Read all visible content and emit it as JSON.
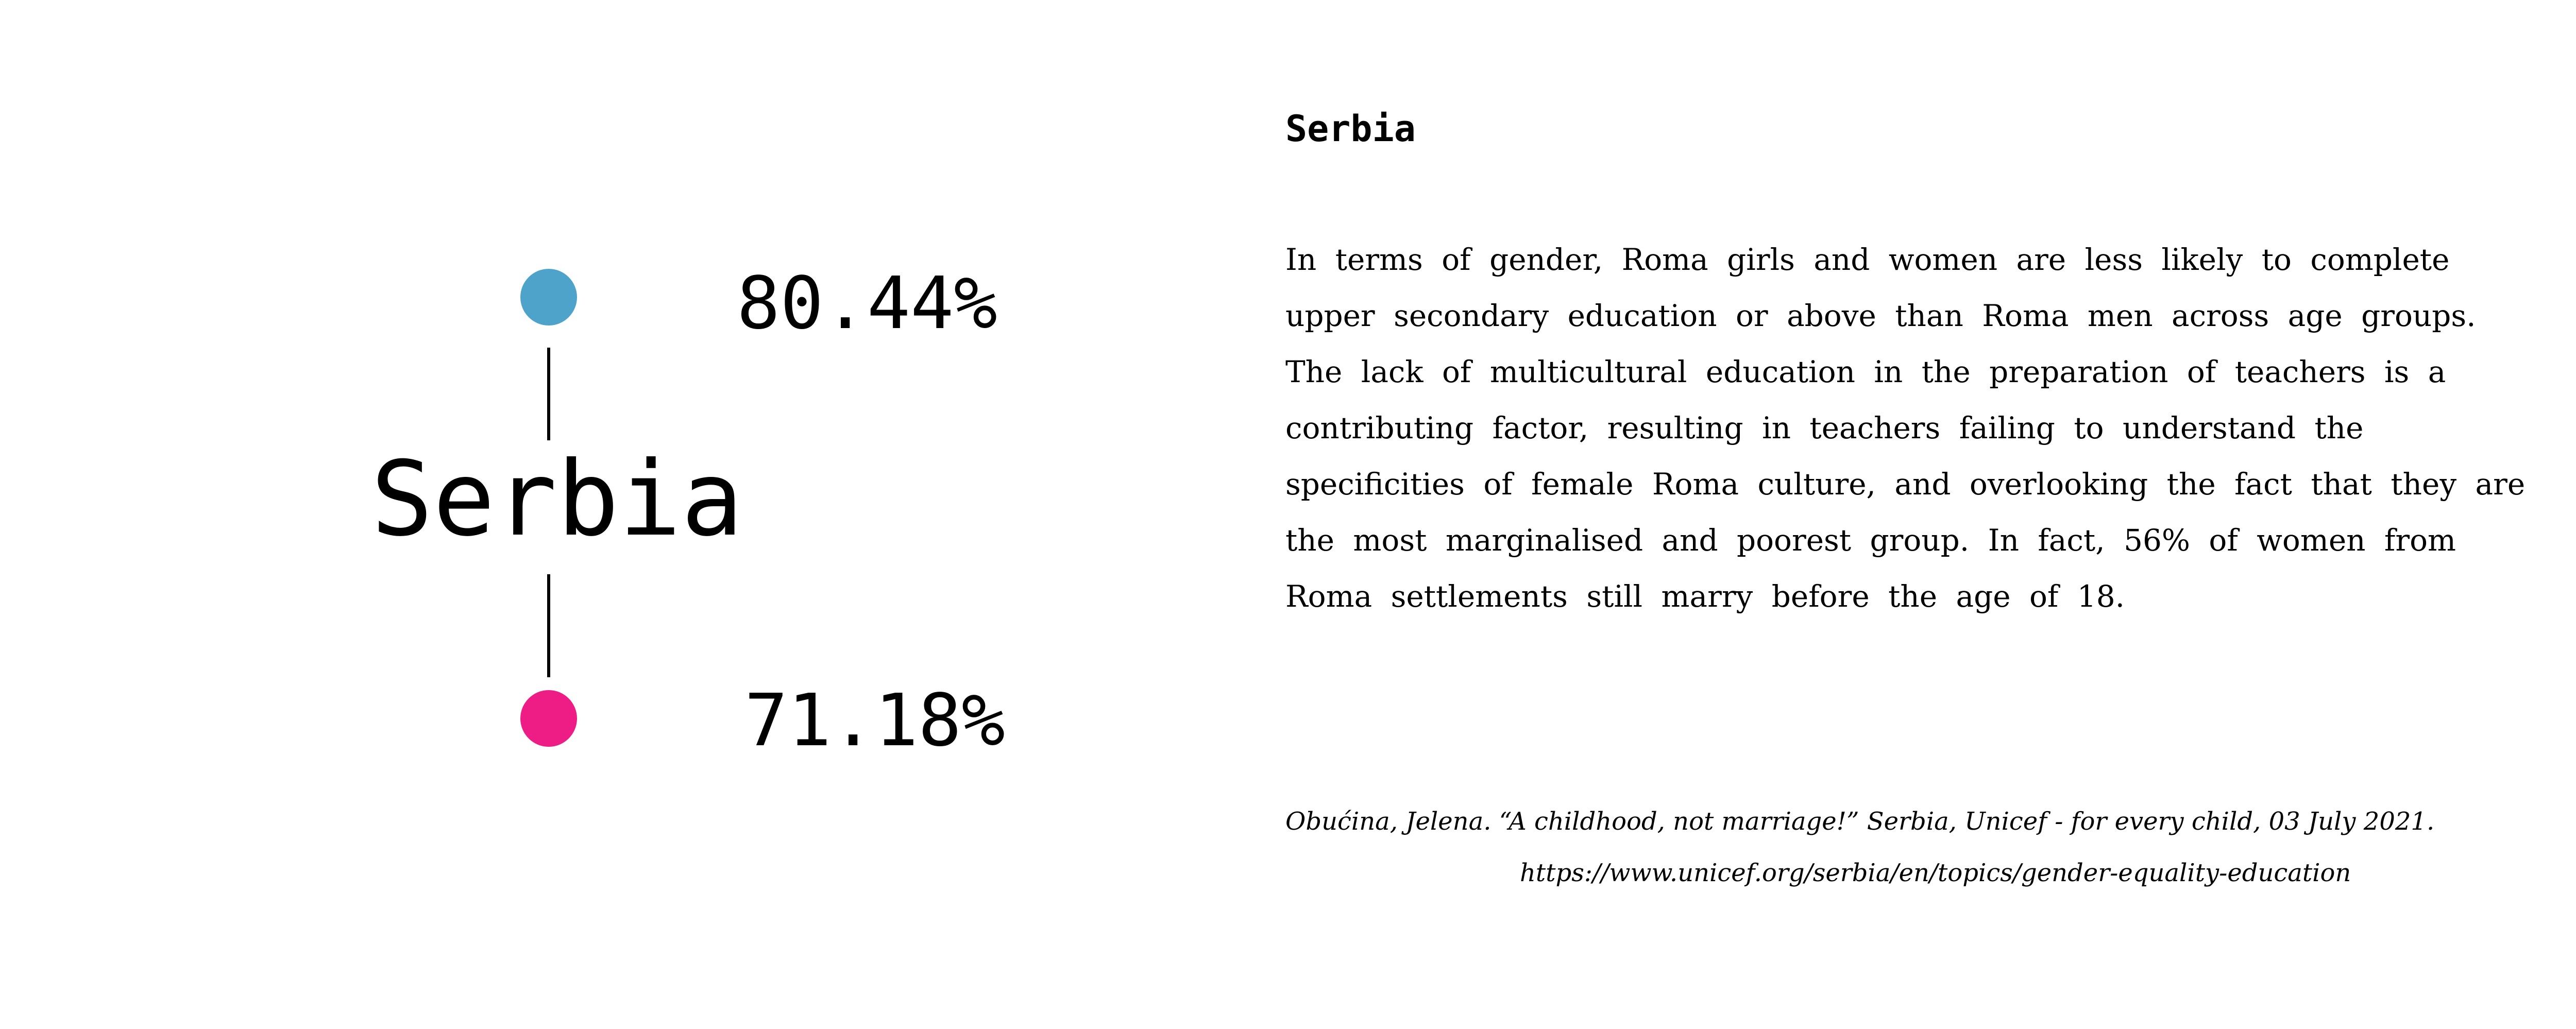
{
  "colors": {
    "upper_dot": "#4da3ca",
    "lower_dot": "#ee1c85"
  },
  "visualization": {
    "country": "Serbia",
    "upper_value": "80.44%",
    "lower_value": "71.18%"
  },
  "text_panel": {
    "heading": "Serbia",
    "body_lines": [
      "In terms of gender, Roma girls and women are less likely to complete",
      "upper secondary education or above than Roma men across age groups.",
      "The lack of multicultural education in the preparation of teachers is a",
      "contributing factor, resulting in teachers failing to understand the",
      "specificities of female Roma culture, and overlooking the fact that they are",
      "the most marginalised and poorest group. In fact, 56% of women from",
      "Roma settlements still marry before the age of 18."
    ],
    "citation_lines": [
      "Obućina, Jelena. “A childhood, not marriage!” Serbia, Unicef - for every child, 03 July 2021.",
      "https://www.unicef.org/serbia/en/topics/gender-equality-education"
    ]
  }
}
